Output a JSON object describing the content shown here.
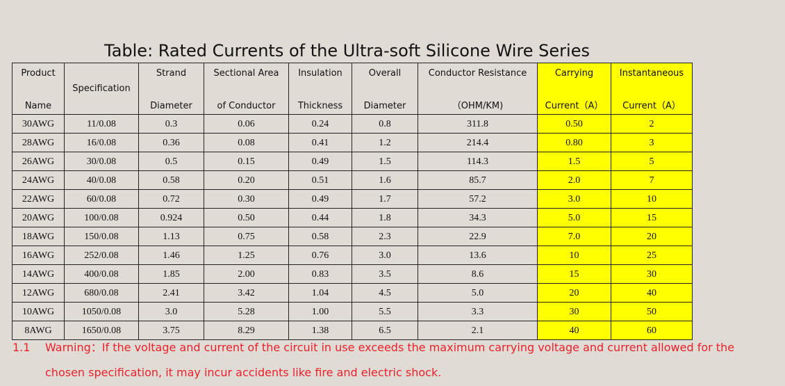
{
  "title": "Table: Rated Currents of the Ultra-soft Silicone Wire Series",
  "header": {
    "product": [
      "Product",
      "Name"
    ],
    "specification": "Specification",
    "strand": [
      "Strand",
      "Diameter"
    ],
    "sectional": [
      "Sectional Area",
      "of Conductor"
    ],
    "insulation": [
      "Insulation",
      "Thickness"
    ],
    "overall": [
      "Overall",
      "Diameter"
    ],
    "resistance": [
      "Conductor Resistance",
      "（OHM/KM)"
    ],
    "carrying": [
      "Carrying",
      "Current（A）"
    ],
    "instantaneous": [
      "Instantaneous",
      "Current（A）"
    ]
  },
  "rows": [
    [
      "30AWG",
      "11/0.08",
      "0.3",
      "0.06",
      "0.24",
      "0.8",
      "311.8",
      "0.50",
      "2"
    ],
    [
      "28AWG",
      "16/0.08",
      "0.36",
      "0.08",
      "0.41",
      "1.2",
      "214.4",
      "0.80",
      "3"
    ],
    [
      "26AWG",
      "30/0.08",
      "0.5",
      "0.15",
      "0.49",
      "1.5",
      "114.3",
      "1.5",
      "5"
    ],
    [
      "24AWG",
      "40/0.08",
      "0.58",
      "0.20",
      "0.51",
      "1.6",
      "85.7",
      "2.0",
      "7"
    ],
    [
      "22AWG",
      "60/0.08",
      "0.72",
      "0.30",
      "0.49",
      "1.7",
      "57.2",
      "3.0",
      "10"
    ],
    [
      "20AWG",
      "100/0.08",
      "0.924",
      "0.50",
      "0.44",
      "1.8",
      "34.3",
      "5.0",
      "15"
    ],
    [
      "18AWG",
      "150/0.08",
      "1.13",
      "0.75",
      "0.58",
      "2.3",
      "22.9",
      "7.0",
      "20"
    ],
    [
      "16AWG",
      "252/0.08",
      "1.46",
      "1.25",
      "0.76",
      "3.0",
      "13.6",
      "10",
      "25"
    ],
    [
      "14AWG",
      "400/0.08",
      "1.85",
      "2.00",
      "0.83",
      "3.5",
      "8.6",
      "15",
      "30"
    ],
    [
      "12AWG",
      "680/0.08",
      "2.41",
      "3.42",
      "1.04",
      "4.5",
      "5.0",
      "20",
      "40"
    ],
    [
      "10AWG",
      "1050/0.08",
      "3.0",
      "5.28",
      "1.00",
      "5.5",
      "3.3",
      "30",
      "50"
    ],
    [
      "8AWG",
      "1650/0.08",
      "3.75",
      "8.29",
      "1.38",
      "6.5",
      "2.1",
      "40",
      "60"
    ]
  ],
  "warning": {
    "number": "1.1",
    "line1": "Warning：If the voltage and current of the circuit in use exceeds the maximum carrying voltage and current allowed for the",
    "line2": "chosen specification, it may incur accidents like fire and electric shock."
  },
  "colors": {
    "highlight": "#ffff00",
    "warning_text": "#e8212a",
    "background": "#e1dbd6"
  }
}
